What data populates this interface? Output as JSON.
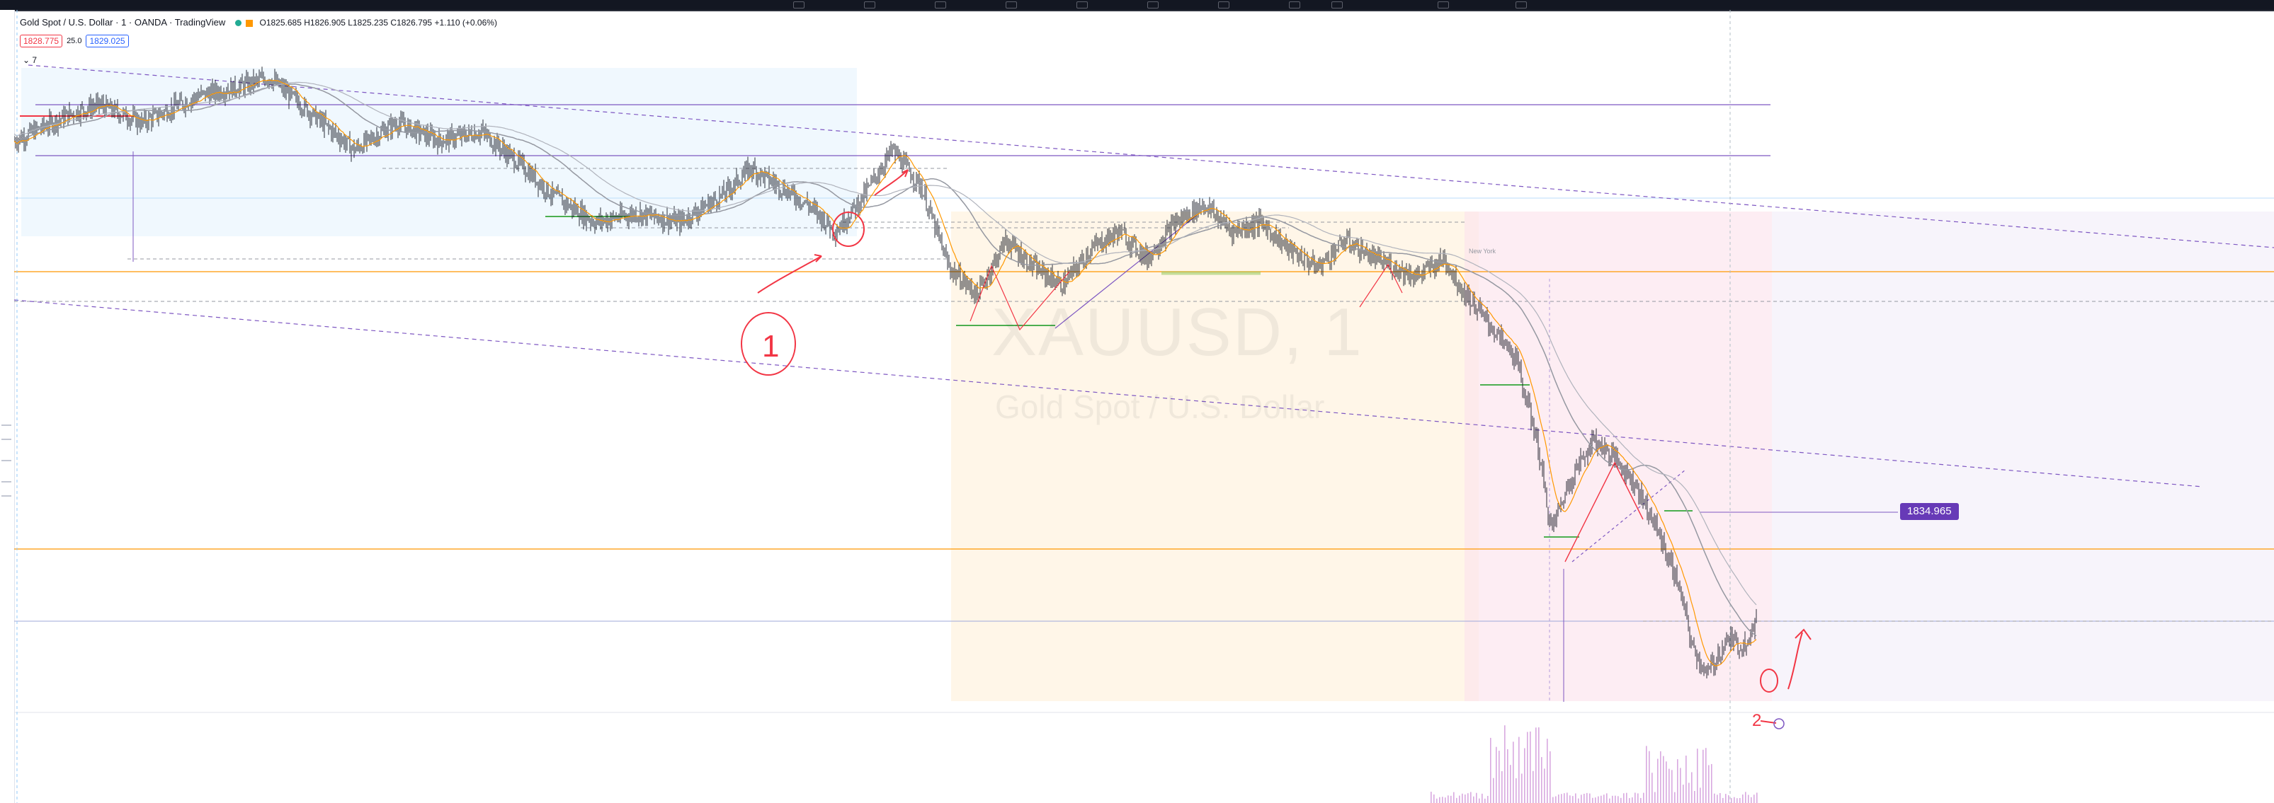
{
  "window": {
    "platform": "TradingView"
  },
  "legend": {
    "symbol_description": "Gold Spot / U.S. Dollar",
    "interval": "1",
    "broker": "OANDA",
    "platform": "TradingView",
    "separator": " · ",
    "open": "O1825.685",
    "high": "H1826.905",
    "low": "L1825.235",
    "close": "C1826.795",
    "change": "+1.110 (+0.06%)"
  },
  "quote": {
    "sell_price": "1828.775",
    "spread": "25.0",
    "buy_price": "1829.025"
  },
  "collapse_label": "7",
  "watermark": {
    "symbol": "XAUUSD, 1",
    "description": "Gold Spot / U.S. Dollar"
  },
  "price_badge": "1834.965",
  "session_label": "New York",
  "annotations": {
    "circled_number_one": "1",
    "number_two": "2"
  },
  "colors": {
    "candles": "#131722",
    "ema_fast": "#ff9800",
    "ma_slow": "#9598a1",
    "trendline": "#7e57c2",
    "horizontal_orange": "#ff9800",
    "support_green": "#4caf50",
    "annotation_red": "#f23645",
    "zone_blue": "#e3f2fd",
    "zone_orange": "#fff3e0",
    "zone_pink": "#fce4ec",
    "zone_lavender": "#ede7f6",
    "volume": "#ce93d8",
    "badge": "#673ab7"
  },
  "chart_data": {
    "type": "candlestick",
    "symbol": "XAUUSD",
    "interval": "1",
    "price_path": [
      [
        0,
        1846
      ],
      [
        40,
        1849
      ],
      [
        60,
        1850
      ],
      [
        90,
        1848
      ],
      [
        130,
        1851
      ],
      [
        160,
        1852
      ],
      [
        180,
        1853
      ],
      [
        210,
        1849
      ],
      [
        240,
        1845
      ],
      [
        270,
        1848
      ],
      [
        300,
        1846
      ],
      [
        330,
        1847
      ],
      [
        360,
        1843
      ],
      [
        380,
        1840
      ],
      [
        410,
        1837
      ],
      [
        440,
        1838
      ],
      [
        470,
        1837
      ],
      [
        500,
        1840
      ],
      [
        520,
        1843
      ],
      [
        540,
        1841
      ],
      [
        560,
        1839
      ],
      [
        580,
        1836
      ],
      [
        600,
        1840
      ],
      [
        620,
        1845
      ],
      [
        640,
        1841
      ],
      [
        660,
        1832
      ],
      [
        680,
        1829
      ],
      [
        700,
        1835
      ],
      [
        720,
        1832
      ],
      [
        740,
        1830
      ],
      [
        760,
        1834
      ],
      [
        780,
        1836
      ],
      [
        800,
        1833
      ],
      [
        820,
        1837
      ],
      [
        840,
        1839
      ],
      [
        860,
        1836
      ],
      [
        880,
        1837
      ],
      [
        900,
        1834
      ],
      [
        920,
        1832
      ],
      [
        940,
        1835
      ],
      [
        960,
        1833
      ],
      [
        990,
        1831
      ],
      [
        1010,
        1833
      ],
      [
        1020,
        1830
      ],
      [
        1040,
        1826
      ],
      [
        1060,
        1822
      ],
      [
        1075,
        1813
      ],
      [
        1085,
        1803
      ],
      [
        1100,
        1809
      ],
      [
        1115,
        1813
      ],
      [
        1130,
        1811
      ],
      [
        1145,
        1808
      ],
      [
        1160,
        1803
      ],
      [
        1175,
        1797
      ],
      [
        1185,
        1790
      ],
      [
        1195,
        1787
      ],
      [
        1210,
        1791
      ],
      [
        1220,
        1790
      ],
      [
        1230,
        1793
      ]
    ]
  }
}
